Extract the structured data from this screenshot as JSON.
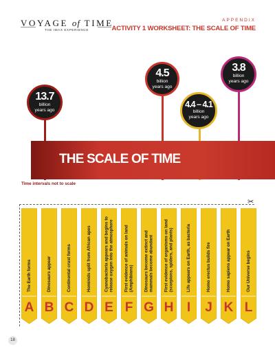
{
  "header": {
    "logo_title_a": "VOYAGE",
    "logo_title_of": "of",
    "logo_title_b": "TIME",
    "logo_sub": "THE IMAX EXPERIENCE",
    "appendix": "APPENDIX",
    "worksheet_title": "ACTIVITY 1 WORKSHEET: THE SCALE OF TIME"
  },
  "pins": [
    {
      "value": "13.7",
      "unit": "billion",
      "suffix": "years ago",
      "color": "#9e1d17"
    },
    {
      "value": "4.5",
      "unit": "billion",
      "suffix": "years ago",
      "color": "#c7352b"
    },
    {
      "value": "4.4 – 4.1",
      "unit": "billion",
      "suffix": "years ago",
      "color": "#e4b72a"
    },
    {
      "value": "3.8",
      "unit": "billion",
      "suffix": "years ago",
      "color": "#b9287a"
    }
  ],
  "banner": {
    "title": "THE SCALE OF TIME",
    "note": "Time intervals not to scale"
  },
  "cards": [
    {
      "letter": "A",
      "text": "The Earth forms"
    },
    {
      "letter": "B",
      "text": "Dinosaurs appear"
    },
    {
      "letter": "C",
      "text": "Continental crust forms"
    },
    {
      "letter": "D",
      "text": "Hominids split from African apes"
    },
    {
      "letter": "E",
      "text": "Cyanobacteria appears and begins to release oxygen into the atmosphere"
    },
    {
      "letter": "F",
      "text": "First evidence of animals on land (Amphibians)"
    },
    {
      "letter": "G",
      "text": "Dinosaurs become extinct and mammals become abundant"
    },
    {
      "letter": "H",
      "text": "First evidence of organisms on land (scorpions, spiders, and plants)"
    },
    {
      "letter": "I",
      "text": "Life appears on Earth, as bacteria"
    },
    {
      "letter": "J",
      "text": "Homo erectus builds fire"
    },
    {
      "letter": "K",
      "text": "Homo sapiens appear on Earth"
    },
    {
      "letter": "L",
      "text": "Our Universe begins"
    }
  ],
  "colors": {
    "accent": "#c7352b",
    "card_gold": "#f0c419",
    "card_gold_dark": "#d9a50f"
  },
  "page_number": "18"
}
